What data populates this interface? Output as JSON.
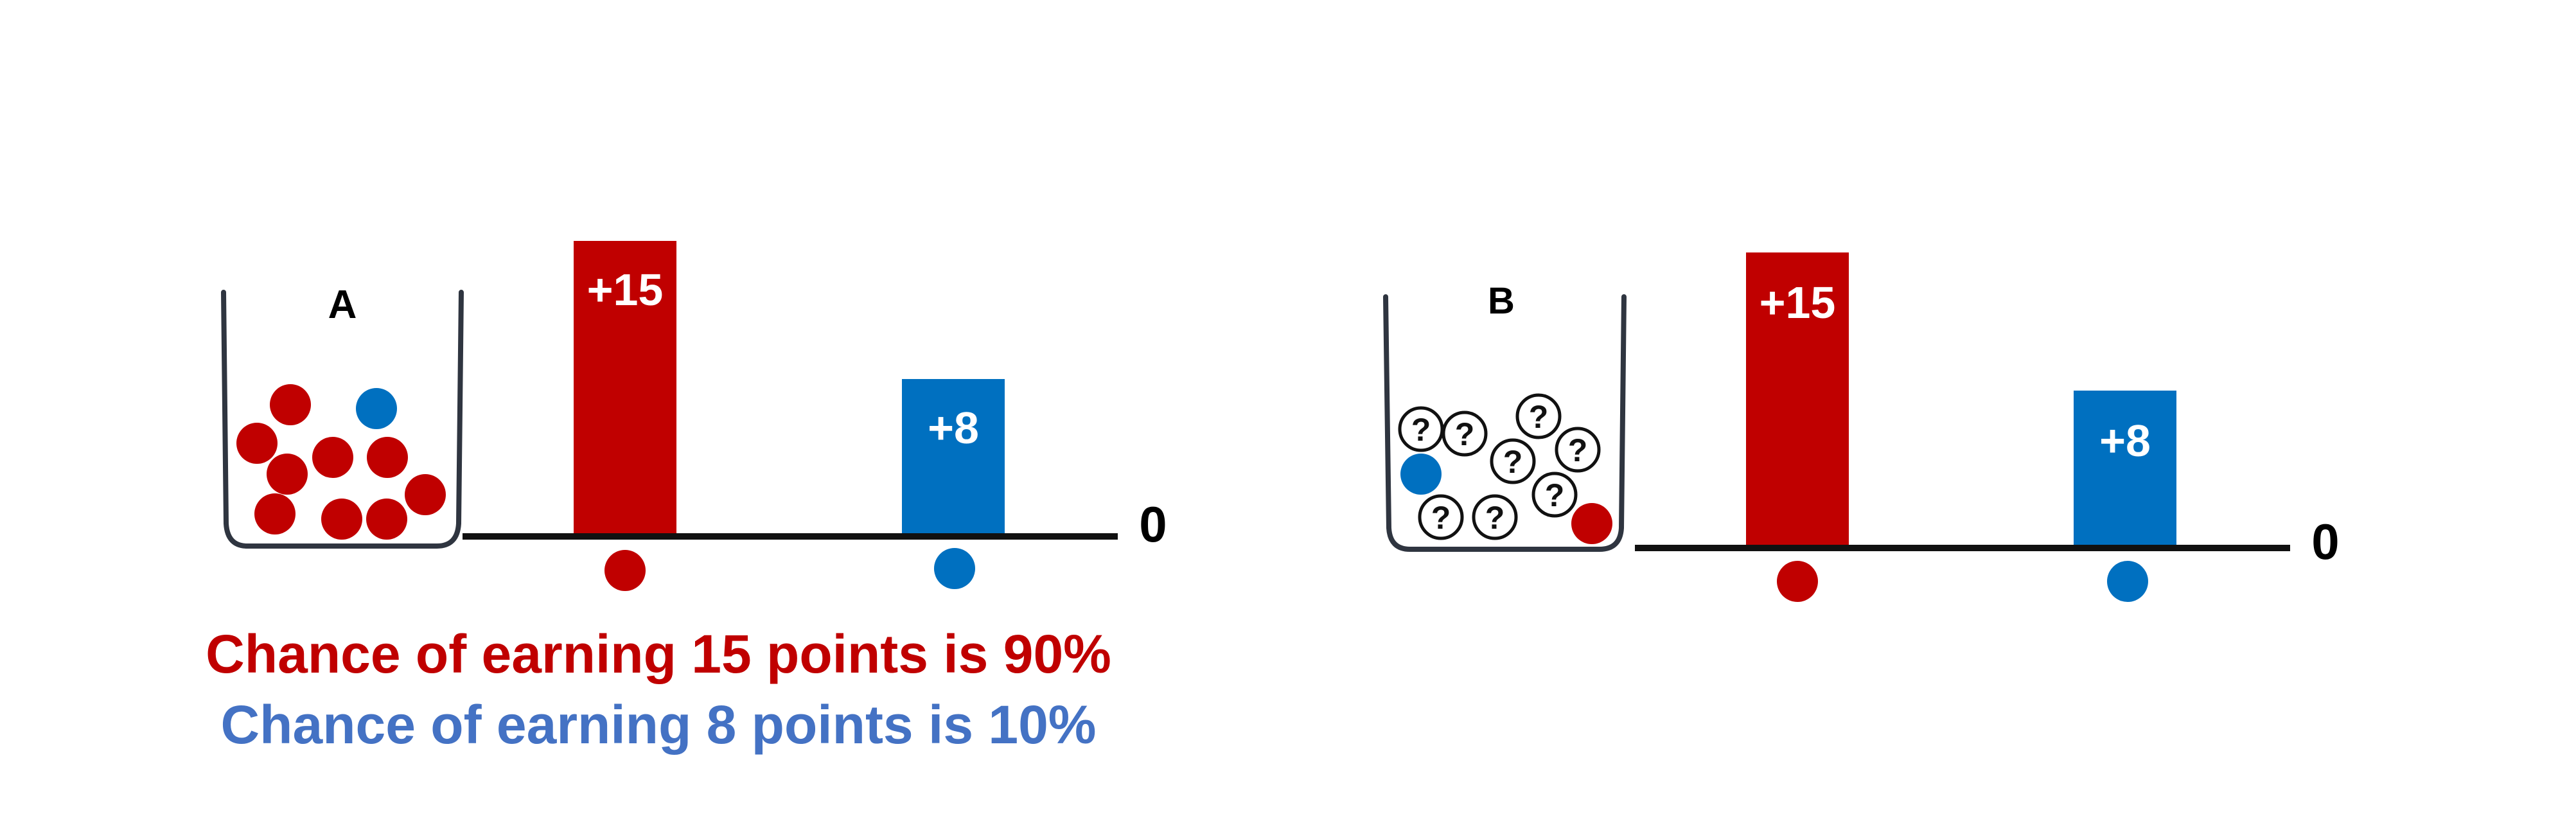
{
  "colors": {
    "red": "#C00000",
    "blue": "#0070C0",
    "text_blue": "#4472C4",
    "outline": "#2F3540",
    "axis": "#111111"
  },
  "urn_a": {
    "label": "A",
    "red_balls": 9,
    "blue_balls": 1,
    "known": true
  },
  "urn_b": {
    "label": "B",
    "red_balls": 1,
    "blue_balls": 1,
    "unknown_balls": 8,
    "unknown_symbol": "?",
    "known": false
  },
  "chart_a": {
    "zero_label": "0",
    "bars": [
      {
        "label": "+15",
        "value": 15,
        "color": "#C00000"
      },
      {
        "label": "+8",
        "value": 8,
        "color": "#0070C0"
      }
    ]
  },
  "chart_b": {
    "zero_label": "0",
    "bars": [
      {
        "label": "+15",
        "value": 15,
        "color": "#C00000"
      },
      {
        "label": "+8",
        "value": 8,
        "color": "#0070C0"
      }
    ]
  },
  "captions": {
    "red": "Chance of earning 15 points is 90%",
    "blue": "Chance of earning 8 points is 10%"
  }
}
